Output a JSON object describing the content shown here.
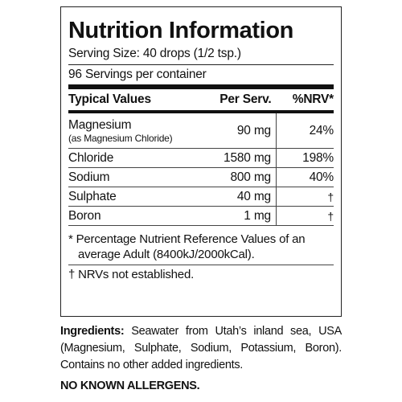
{
  "label": {
    "title": "Nutrition Information",
    "serving_size": "Serving Size: 40 drops (1/2 tsp.)",
    "servings_per_container": "96 Servings per container",
    "table": {
      "headers": [
        "Typical Values",
        "Per Serv.",
        "%NRV*"
      ],
      "rows": [
        {
          "name": "Magnesium",
          "sub": "(as Magnesium Chloride)",
          "value": "90 mg",
          "nrv": "24%"
        },
        {
          "name": "Chloride",
          "value": "1580 mg",
          "nrv": "198%"
        },
        {
          "name": "Sodium",
          "value": "800 mg",
          "nrv": "40%"
        },
        {
          "name": "Sulphate",
          "value": "40 mg",
          "nrv": "†"
        },
        {
          "name": "Boron",
          "value": "1 mg",
          "nrv": "†"
        }
      ]
    },
    "footnote_nrv_line1": "* Percentage Nutrient Reference Values of an",
    "footnote_nrv_line2": "average Adult (8400kJ/2000kCal).",
    "footnote_dagger": "† NRVs not established."
  },
  "ingredients": {
    "heading": "Ingredients:",
    "text": " Seawater from Utah’s inland sea, USA (Magnesium, Sulphate, Sodium, Potassium, Boron). Contains no other added ingredients."
  },
  "allergens": "NO KNOWN ALLERGENS."
}
